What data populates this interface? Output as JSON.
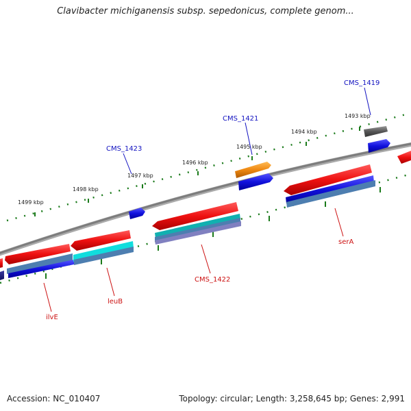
{
  "title": "Clavibacter michiganensis subsp. sepedonicus, complete genom...",
  "footer": {
    "accession": "Accession: NC_010407",
    "summary": "Topology: circular; Length: 3,258,645 bp; Genes: 2,991"
  },
  "ruler": {
    "ticks": [
      "1499 kbp",
      "1498 kbp",
      "1497 kbp",
      "1496 kbp",
      "1495 kbp",
      "1494 kbp",
      "1493 kbp"
    ]
  },
  "gene_labels": {
    "forward": [
      "CMS_1423",
      "CMS_1421",
      "CMS_1419"
    ],
    "reverse": [
      "ilvE",
      "leuB",
      "CMS_1422",
      "serA"
    ]
  },
  "colors": {
    "backbone": "#8a8a8a",
    "tick": "#1a7a1a",
    "forward_label": "#1010c0",
    "reverse_label": "#cc1010",
    "red_feature": "#ee1111",
    "blue_feature": "#1111dd",
    "orange_feature": "#ee8811",
    "gray_feature": "#555555"
  }
}
